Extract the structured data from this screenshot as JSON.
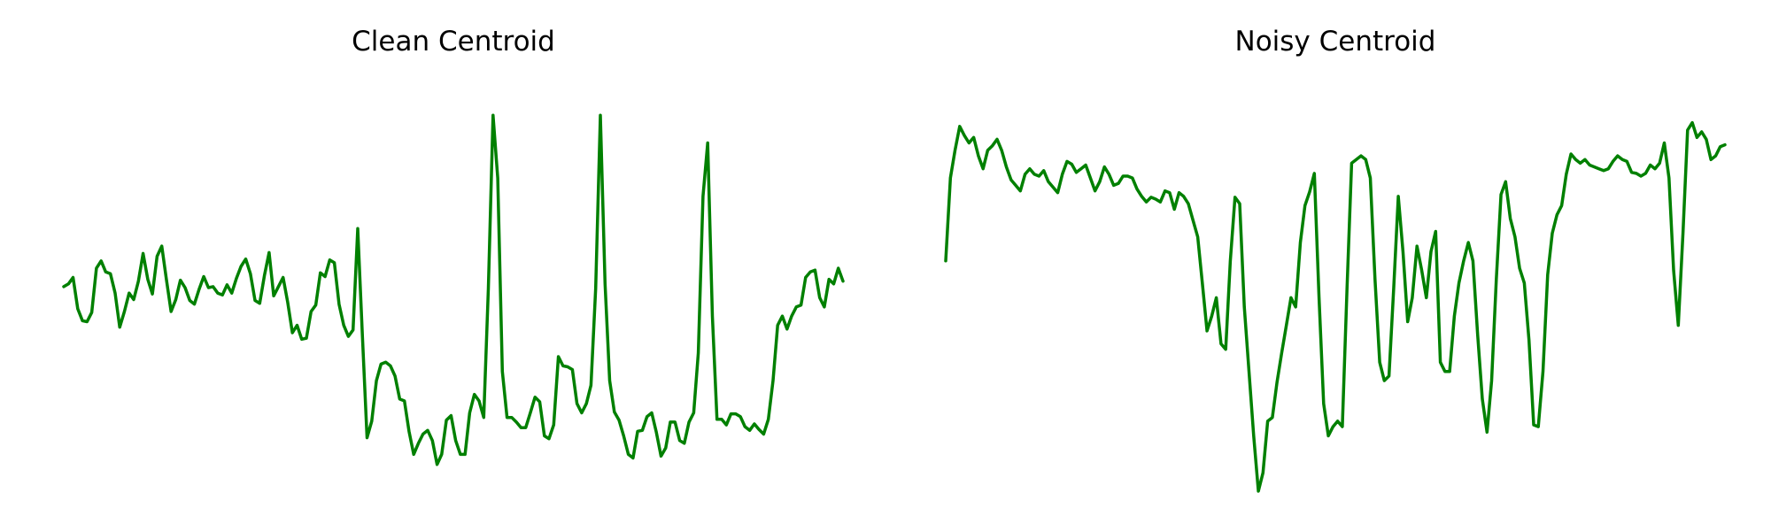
{
  "line_color": "#008000",
  "chart_data": [
    {
      "type": "line",
      "title": "Clean Centroid",
      "xlabel": "",
      "ylabel": "",
      "axes_visible": false,
      "grid": false,
      "xlim": [
        0,
        165
      ],
      "ylim": [
        -2.2,
        2.2
      ],
      "series": [
        {
          "values": [
            0.02,
            0.05,
            0.12,
            -0.22,
            -0.35,
            -0.36,
            -0.26,
            0.22,
            0.3,
            0.18,
            0.16,
            -0.05,
            -0.42,
            -0.25,
            -0.05,
            -0.12,
            0.08,
            0.38,
            0.1,
            -0.06,
            0.35,
            0.46,
            0.1,
            -0.25,
            -0.12,
            0.09,
            0.01,
            -0.13,
            -0.17,
            -0.01,
            0.13,
            0.01,
            0.02,
            -0.05,
            -0.07,
            0.04,
            -0.05,
            0.11,
            0.24,
            0.32,
            0.16,
            -0.13,
            -0.16,
            0.14,
            0.39,
            -0.08,
            0.02,
            0.12,
            -0.15,
            -0.48,
            -0.4,
            -0.55,
            -0.54,
            -0.25,
            -0.18,
            0.17,
            0.13,
            0.31,
            0.28,
            -0.17,
            -0.4,
            -0.52,
            -0.45,
            0.65,
            -0.5,
            -1.62,
            -1.44,
            -1.0,
            -0.82,
            -0.8,
            -0.84,
            -0.95,
            -1.2,
            -1.22,
            -1.55,
            -1.8,
            -1.68,
            -1.58,
            -1.54,
            -1.65,
            -1.91,
            -1.8,
            -1.43,
            -1.38,
            -1.65,
            -1.8,
            -1.8,
            -1.35,
            -1.15,
            -1.22,
            -1.4,
            0.0,
            1.88,
            1.2,
            -0.9,
            -1.4,
            -1.4,
            -1.45,
            -1.51,
            -1.51,
            -1.35,
            -1.18,
            -1.23,
            -1.6,
            -1.63,
            -1.48,
            -0.74,
            -0.84,
            -0.85,
            -0.88,
            -1.25,
            -1.35,
            -1.25,
            -1.05,
            0.0,
            1.88,
            0.05,
            -1.0,
            -1.34,
            -1.43,
            -1.6,
            -1.8,
            -1.84,
            -1.55,
            -1.54,
            -1.39,
            -1.35,
            -1.56,
            -1.82,
            -1.73,
            -1.45,
            -1.45,
            -1.65,
            -1.68,
            -1.45,
            -1.35,
            -0.7,
            1.0,
            1.58,
            -0.3,
            -1.42,
            -1.42,
            -1.48,
            -1.36,
            -1.36,
            -1.39,
            -1.5,
            -1.54,
            -1.47,
            -1.53,
            -1.58,
            -1.42,
            -1.0,
            -0.4,
            -0.3,
            -0.44,
            -0.3,
            -0.2,
            -0.18,
            0.12,
            0.18,
            0.2,
            -0.1,
            -0.2,
            0.1,
            0.05,
            0.22,
            0.08
          ]
        }
      ]
    },
    {
      "type": "line",
      "title": "Noisy Centroid",
      "xlabel": "",
      "ylabel": "",
      "axes_visible": false,
      "grid": false,
      "xlim": [
        0,
        165
      ],
      "ylim": [
        -2.2,
        2.2
      ],
      "series": [
        {
          "values": [
            0.3,
            1.2,
            1.5,
            1.76,
            1.66,
            1.58,
            1.64,
            1.44,
            1.3,
            1.5,
            1.55,
            1.62,
            1.5,
            1.32,
            1.18,
            1.12,
            1.06,
            1.24,
            1.3,
            1.24,
            1.22,
            1.28,
            1.16,
            1.1,
            1.04,
            1.24,
            1.38,
            1.35,
            1.26,
            1.3,
            1.34,
            1.2,
            1.06,
            1.16,
            1.32,
            1.24,
            1.12,
            1.14,
            1.22,
            1.22,
            1.2,
            1.08,
            1.0,
            0.94,
            0.99,
            0.97,
            0.94,
            1.06,
            1.04,
            0.86,
            1.04,
            1.0,
            0.92,
            0.74,
            0.56,
            0.06,
            -0.46,
            -0.3,
            -0.1,
            -0.6,
            -0.66,
            0.3,
            0.99,
            0.92,
            -0.2,
            -0.9,
            -1.6,
            -2.2,
            -2.0,
            -1.44,
            -1.4,
            -1.02,
            -0.7,
            -0.4,
            -0.1,
            -0.2,
            0.5,
            0.9,
            1.05,
            1.25,
            -0.1,
            -1.25,
            -1.6,
            -1.5,
            -1.44,
            -1.5,
            0.0,
            1.36,
            1.4,
            1.44,
            1.4,
            1.2,
            0.1,
            -0.8,
            -1.0,
            -0.95,
            0.0,
            1.0,
            0.4,
            -0.36,
            -0.1,
            0.46,
            0.2,
            -0.1,
            0.4,
            0.62,
            -0.8,
            -0.9,
            -0.9,
            -0.3,
            0.06,
            0.3,
            0.5,
            0.3,
            -0.5,
            -1.2,
            -1.56,
            -1.0,
            0.1,
            1.02,
            1.16,
            0.76,
            0.56,
            0.22,
            0.06,
            -0.56,
            -1.48,
            -1.5,
            -0.9,
            0.15,
            0.6,
            0.8,
            0.9,
            1.24,
            1.46,
            1.4,
            1.36,
            1.4,
            1.34,
            1.32,
            1.3,
            1.28,
            1.3,
            1.38,
            1.44,
            1.4,
            1.38,
            1.26,
            1.25,
            1.22,
            1.25,
            1.34,
            1.3,
            1.36,
            1.58,
            1.2,
            0.2,
            -0.4,
            0.6,
            1.72,
            1.8,
            1.64,
            1.7,
            1.62,
            1.4,
            1.44,
            1.54,
            1.56
          ]
        }
      ]
    }
  ]
}
